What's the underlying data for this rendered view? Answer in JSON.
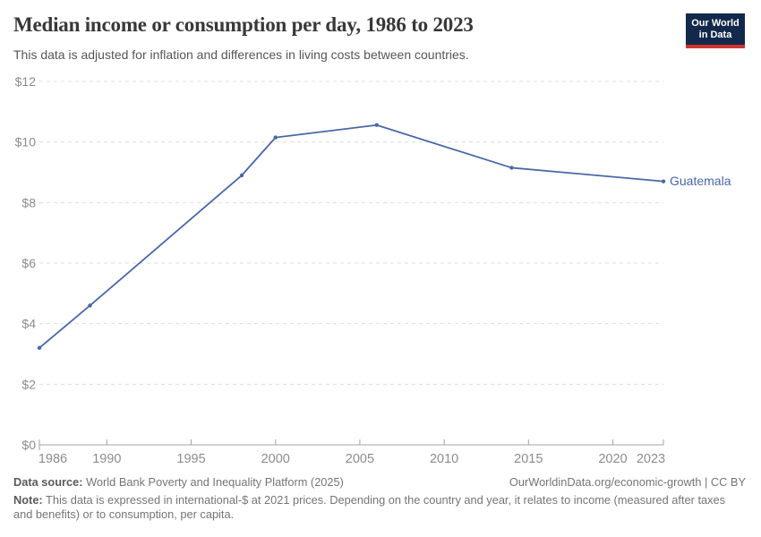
{
  "header": {
    "title": "Median income or consumption per day, 1986 to 2023",
    "subtitle": "This data is adjusted for inflation and differences in living costs between countries.",
    "logo": {
      "line1": "Our World",
      "line2": "in Data",
      "bg_color": "#12294b",
      "bar_color": "#d0342c"
    }
  },
  "chart_data": {
    "type": "line",
    "title": "Median income or consumption per day, 1986 to 2023",
    "xlabel": "",
    "ylabel": "",
    "xlim": [
      1986,
      2023
    ],
    "ylim": [
      0,
      12
    ],
    "grid": "horizontal dashed",
    "legend_position": "end-of-line label",
    "series": [
      {
        "name": "Guatemala",
        "x": [
          1986,
          1989,
          1998,
          2000,
          2006,
          2014,
          2023
        ],
        "values": [
          3.2,
          4.6,
          8.9,
          10.15,
          10.56,
          9.15,
          8.7
        ]
      }
    ],
    "yticks": [
      0,
      2,
      4,
      6,
      8,
      10,
      12
    ],
    "ytick_labels": [
      "$0",
      "$2",
      "$4",
      "$6",
      "$8",
      "$10",
      "$12"
    ],
    "xticks": [
      1986,
      1990,
      1995,
      2000,
      2005,
      2010,
      2015,
      2020,
      2023
    ],
    "line_color": "#4a68a5",
    "grid_color": "#dddddd",
    "axis_color": "#a3a3a3",
    "tick_label_color": "#8c8c8c"
  },
  "footer": {
    "data_source_label": "Data source:",
    "data_source": " World Bank Poverty and Inequality Platform (2025)",
    "attribution": "OurWorldinData.org/economic-growth | CC BY",
    "note_label": "Note:",
    "note": " This data is expressed in international-$ at 2021 prices. Depending on the country and year, it relates to income (measured after taxes and benefits) or to consumption, per capita."
  }
}
